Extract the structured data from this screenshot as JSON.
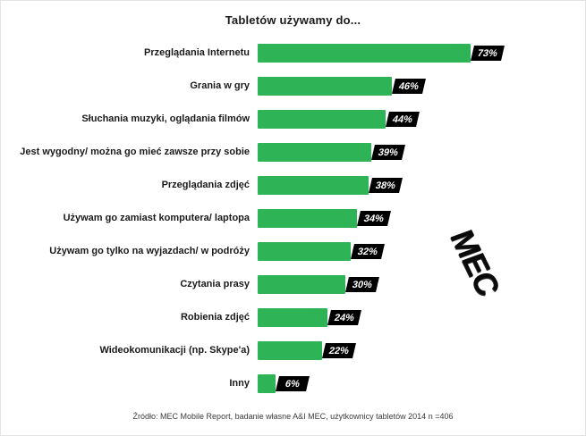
{
  "chart": {
    "title": "Tabletów używamy do...",
    "logo": "MEC",
    "source": "Źródło: MEC Mobile Report, badanie własne A&I MEC, użytkownicy tabletów  2014 n =406"
  },
  "chart_data": {
    "type": "bar",
    "orientation": "horizontal",
    "title": "Tabletów używamy do...",
    "categories": [
      "Przeglądania Internetu",
      "Grania w gry",
      "Słuchania muzyki, oglądania filmów",
      "Jest wygodny/ można go mieć zawsze przy sobie",
      "Przeglądania zdjęć",
      "Używam go zamiast komputera/ laptopa",
      "Używam go tylko na wyjazdach/ w podróży",
      "Czytania prasy",
      "Robienia zdjęć",
      "Wideokomunikacji (np. Skype'a)",
      "Inny"
    ],
    "values": [
      73,
      46,
      44,
      39,
      38,
      34,
      32,
      30,
      24,
      22,
      6
    ],
    "value_labels": [
      "73%",
      "46%",
      "44%",
      "39%",
      "38%",
      "34%",
      "32%",
      "30%",
      "24%",
      "22%",
      "6%"
    ],
    "xlabel": "",
    "ylabel": "",
    "xlim": [
      0,
      80
    ],
    "grid": false,
    "legend": false,
    "bar_color": "#2eb457",
    "value_box_color": "#000000",
    "value_text_color": "#ffffff"
  }
}
